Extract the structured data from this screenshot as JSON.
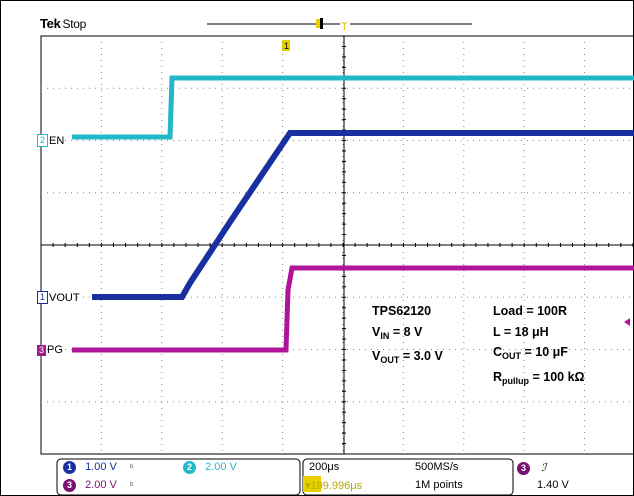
{
  "header": {
    "brand": "Tek",
    "status": "Stop"
  },
  "markers": {
    "trigger_pos": "T",
    "ch1_top": "1"
  },
  "channels": {
    "ch2": {
      "num": "2",
      "name": "EN",
      "color": "#22b8c8"
    },
    "ch1": {
      "num": "1",
      "name": "VOUT",
      "color": "#1a2fa0"
    },
    "ch3": {
      "num": "3",
      "name": "PG",
      "color": "#b0149a"
    }
  },
  "info": {
    "device": "TPS62120",
    "vin_label": "V",
    "vin_sub": "IN",
    "vin_value": " = 8 V",
    "vout_label": "V",
    "vout_sub": "OUT",
    "vout_value": " = 3.0 V",
    "load": "Load = 100R",
    "inductor": "L = 18 μH",
    "cout_label": "C",
    "cout_sub": "OUT",
    "cout_value": " = 10 μF",
    "rpull_label": "R",
    "rpull_sub": "pullup",
    "rpull_value": " = 100 kΩ"
  },
  "status_bar": {
    "ch1_scale": "1.00 V",
    "ch2_num": "2",
    "ch2_scale": "2.00 V",
    "ch3_scale": "2.00 V",
    "timebase": "200μs",
    "sample_rate": "500MS/s",
    "record_length": "1M points",
    "trigger_offset": "▾199.996μs",
    "trigger_level": "1.40 V",
    "trigger_slope": "ℐ",
    "bw_symbol": "ᵇ"
  }
}
